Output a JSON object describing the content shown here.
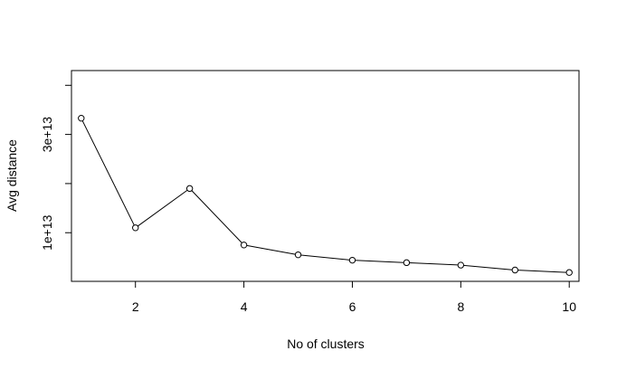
{
  "chart_data": {
    "type": "line",
    "title": "",
    "xlabel": "No of clusters",
    "ylabel": "Avg distance",
    "x": [
      1,
      2,
      3,
      4,
      5,
      6,
      7,
      8,
      9,
      10
    ],
    "series": [
      {
        "values": [
          33300000000000.0,
          11000000000000.0,
          19000000000000.0,
          7500000000000.0,
          5500000000000.0,
          4400000000000.0,
          3900000000000.0,
          3400000000000.0,
          2400000000000.0,
          1900000000000.0
        ]
      }
    ],
    "xlim": [
      0.82,
      10.18
    ],
    "ylim": [
      100000000000.0,
      43000000000000.0
    ],
    "xticks": [
      2,
      4,
      6,
      8,
      10
    ],
    "xtick_labels": [
      "2",
      "4",
      "6",
      "8",
      "10"
    ],
    "yticks": [
      40000000000000.0,
      30000000000000.0,
      20000000000000.0,
      10000000000000.0
    ],
    "ytick_labels": [
      "",
      "3e+13",
      "",
      "1e+13"
    ],
    "grid": false,
    "legend": "none"
  }
}
